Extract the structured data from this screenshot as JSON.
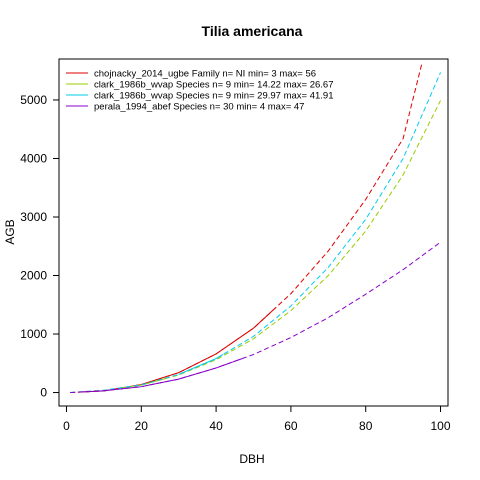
{
  "chart_data": {
    "type": "line",
    "title": "Tilia americana",
    "xlabel": "DBH",
    "ylabel": "AGB",
    "xlim": [
      -2,
      102
    ],
    "ylim": [
      -230,
      5700
    ],
    "x_ticks": [
      0,
      20,
      40,
      60,
      80,
      100
    ],
    "y_ticks": [
      0,
      1000,
      2000,
      3000,
      4000,
      5000
    ],
    "x_tick_labels": [
      "0",
      "20",
      "40",
      "60",
      "80",
      "100"
    ],
    "y_tick_labels": [
      "0",
      "1000",
      "2000",
      "3000",
      "4000",
      "5000"
    ],
    "legend_position": "top-left",
    "series": [
      {
        "name": "chojnacky_2014_ugbe Family n= NI min= 3 max= 56",
        "color": "#dd0000",
        "style": "mixed",
        "solid_range": [
          3,
          56
        ],
        "x": [
          1,
          10,
          20,
          30,
          40,
          50,
          60,
          70,
          80,
          90,
          95
        ],
        "y": [
          0,
          28,
          137,
          340,
          660,
          1100,
          1690,
          2420,
          3300,
          4340,
          5620
        ]
      },
      {
        "name": "clark_1986b_wvap Species n= 9 min= 14.22 max= 26.67",
        "color": "#99cc00",
        "style": "mixed",
        "solid_range": [
          14.22,
          26.67
        ],
        "x": [
          1,
          10,
          20,
          30,
          40,
          50,
          60,
          70,
          80,
          90,
          100
        ],
        "y": [
          0,
          40,
          128,
          300,
          560,
          920,
          1400,
          2000,
          2760,
          3720,
          4990
        ]
      },
      {
        "name": "clark_1986b_wvap Species n= 9 min= 29.97 max= 41.91",
        "color": "#00ccee",
        "style": "mixed",
        "solid_range": [
          29.97,
          41.91
        ],
        "x": [
          1,
          10,
          20,
          30,
          40,
          50,
          60,
          70,
          80,
          90,
          100
        ],
        "y": [
          0,
          40,
          130,
          310,
          580,
          960,
          1480,
          2140,
          2960,
          4000,
          5470
        ]
      },
      {
        "name": "perala_1994_abef Species n= 30 min= 4 max= 47",
        "color": "#8800cc",
        "style": "mixed",
        "solid_range": [
          4,
          47
        ],
        "x": [
          1,
          10,
          20,
          30,
          40,
          50,
          60,
          70,
          80,
          90,
          100
        ],
        "y": [
          0,
          30,
          100,
          230,
          420,
          650,
          940,
          1280,
          1680,
          2100,
          2570
        ]
      }
    ]
  }
}
